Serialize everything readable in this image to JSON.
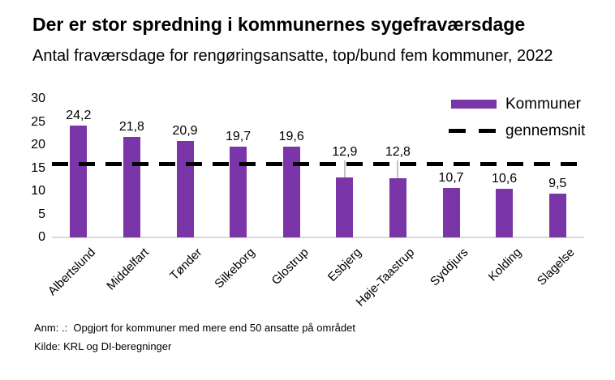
{
  "footer": {
    "note": "Anm: .:  Opgjort for kommuner med mere end 50 ansatte på området",
    "source": "Kilde: KRL og DI-beregninger"
  },
  "colors": {
    "bar": "#7A35A8",
    "average_line": "#000000",
    "axis_line": "#d9d9d9",
    "leader_line": "#c3c3c3",
    "text": "#000000",
    "background": "#ffffff"
  },
  "chart_data": {
    "type": "bar",
    "title": "Der er stor spredning i kommunernes sygefraværsdage",
    "subtitle": "Antal fraværsdage for rengøringsansatte, top/bund fem kommuner, 2022",
    "categories": [
      "Albertslund",
      "Middelfart",
      "Tønder",
      "Silkeborg",
      "Glostrup",
      "Esbjerg",
      "Høje-Taastrup",
      "Syddjurs",
      "Kolding",
      "Slagelse"
    ],
    "values": [
      24.2,
      21.8,
      20.9,
      19.7,
      19.6,
      12.9,
      12.8,
      10.7,
      10.6,
      9.5
    ],
    "value_labels": [
      "24,2",
      "21,8",
      "20,9",
      "19,7",
      "19,6",
      "12,9",
      "12,8",
      "10,7",
      "10,6",
      "9,5"
    ],
    "series_label": "Kommuner",
    "average_line": {
      "label": "gennemsnit",
      "value": 15.8
    },
    "xlabel": "",
    "ylabel": "",
    "ylim": [
      0,
      30
    ],
    "yticks": [
      0,
      5,
      10,
      15,
      20,
      25,
      30
    ],
    "grid": false,
    "legend_position": "top-right"
  }
}
